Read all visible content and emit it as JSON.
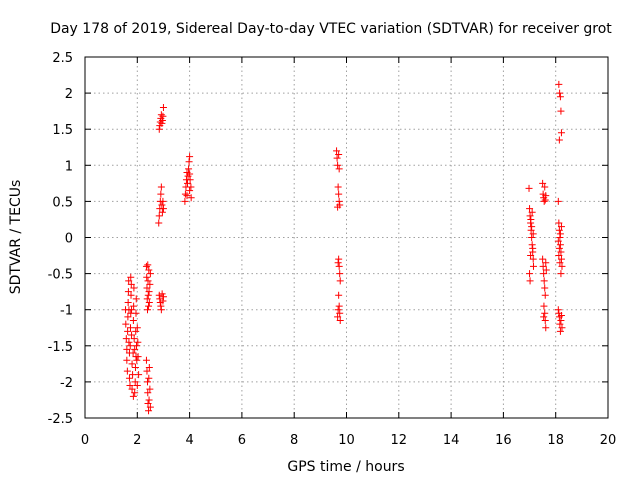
{
  "chart_data": {
    "type": "scatter",
    "title": "Day 178 of 2019, Sidereal Day-to-day VTEC variation (SDTVAR) for receiver grot",
    "xlabel": "GPS time / hours",
    "ylabel": "SDTVAR / TECUs",
    "xlim": [
      0,
      20
    ],
    "ylim": [
      -2.5,
      2.5
    ],
    "xticks": [
      0,
      2,
      4,
      6,
      8,
      10,
      12,
      14,
      16,
      18,
      20
    ],
    "yticks": [
      -2.5,
      -2,
      -1.5,
      -1,
      -0.5,
      0,
      0.5,
      1,
      1.5,
      2,
      2.5
    ],
    "xtick_labels": [
      "0",
      "2",
      "4",
      "6",
      "8",
      "10",
      "12",
      "14",
      "16",
      "18",
      "20"
    ],
    "ytick_labels": [
      "-2.5",
      "-2",
      "-1.5",
      "-1",
      "-0.5",
      "0",
      "0.5",
      "1",
      "1.5",
      "2",
      "2.5"
    ],
    "grid": true,
    "marker": "+",
    "color": "#ff0000",
    "series": [
      {
        "name": "SDTVAR",
        "points": [
          [
            1.55,
            -1.0
          ],
          [
            1.56,
            -1.2
          ],
          [
            1.58,
            -1.4
          ],
          [
            1.6,
            -1.55
          ],
          [
            1.6,
            -1.7
          ],
          [
            1.62,
            -1.85
          ],
          [
            1.63,
            -1.3
          ],
          [
            1.64,
            -1.1
          ],
          [
            1.65,
            -0.9
          ],
          [
            1.66,
            -0.75
          ],
          [
            1.67,
            -0.6
          ],
          [
            1.68,
            -1.45
          ],
          [
            1.7,
            -1.6
          ],
          [
            1.7,
            -1.95
          ],
          [
            1.72,
            -2.05
          ],
          [
            1.73,
            -1.5
          ],
          [
            1.74,
            -1.25
          ],
          [
            1.75,
            -1.05
          ],
          [
            1.76,
            -0.8
          ],
          [
            1.77,
            -0.65
          ],
          [
            1.78,
            -1.35
          ],
          [
            1.8,
            -1.75
          ],
          [
            1.8,
            -2.1
          ],
          [
            1.82,
            -1.9
          ],
          [
            1.84,
            -1.6
          ],
          [
            1.85,
            -1.15
          ],
          [
            1.86,
            -0.95
          ],
          [
            1.87,
            -0.7
          ],
          [
            1.88,
            -1.4
          ],
          [
            1.9,
            -1.55
          ],
          [
            1.9,
            -2.15
          ],
          [
            1.92,
            -2.0
          ],
          [
            1.93,
            -1.8
          ],
          [
            1.94,
            -1.3
          ],
          [
            1.95,
            -1.05
          ],
          [
            1.96,
            -0.85
          ],
          [
            1.97,
            -1.5
          ],
          [
            1.98,
            -1.7
          ],
          [
            2.0,
            -2.05
          ],
          [
            2.0,
            -1.25
          ],
          [
            2.02,
            -1.45
          ],
          [
            2.03,
            -1.65
          ],
          [
            2.05,
            -1.9
          ],
          [
            1.75,
            -0.55
          ],
          [
            1.85,
            -2.2
          ],
          [
            1.95,
            -1.65
          ],
          [
            1.68,
            -1.0
          ],
          [
            1.78,
            -1.0
          ],
          [
            2.35,
            -0.4
          ],
          [
            2.36,
            -0.55
          ],
          [
            2.37,
            -0.7
          ],
          [
            2.38,
            -0.85
          ],
          [
            2.39,
            -1.0
          ],
          [
            2.4,
            -0.38
          ],
          [
            2.41,
            -0.6
          ],
          [
            2.42,
            -0.8
          ],
          [
            2.43,
            -0.95
          ],
          [
            2.44,
            -0.45
          ],
          [
            2.45,
            -0.75
          ],
          [
            2.46,
            -0.9
          ],
          [
            2.48,
            -0.65
          ],
          [
            2.5,
            -0.5
          ],
          [
            2.35,
            -1.7
          ],
          [
            2.37,
            -1.85
          ],
          [
            2.39,
            -2.0
          ],
          [
            2.4,
            -2.15
          ],
          [
            2.41,
            -2.3
          ],
          [
            2.43,
            -2.4
          ],
          [
            2.44,
            -1.95
          ],
          [
            2.45,
            -2.25
          ],
          [
            2.46,
            -1.8
          ],
          [
            2.48,
            -2.1
          ],
          [
            2.5,
            -2.35
          ],
          [
            2.82,
            0.2
          ],
          [
            2.84,
            0.3
          ],
          [
            2.86,
            0.4
          ],
          [
            2.88,
            0.5
          ],
          [
            2.9,
            0.6
          ],
          [
            2.92,
            0.7
          ],
          [
            2.94,
            0.45
          ],
          [
            2.96,
            0.35
          ],
          [
            2.98,
            0.5
          ],
          [
            3.0,
            0.4
          ],
          [
            2.84,
            1.5
          ],
          [
            2.86,
            1.55
          ],
          [
            2.88,
            1.6
          ],
          [
            2.9,
            1.65
          ],
          [
            2.92,
            1.7
          ],
          [
            2.94,
            1.58
          ],
          [
            2.96,
            1.62
          ],
          [
            2.98,
            1.68
          ],
          [
            3.0,
            1.8
          ],
          [
            2.84,
            -0.8
          ],
          [
            2.86,
            -0.85
          ],
          [
            2.88,
            -0.9
          ],
          [
            2.9,
            -0.95
          ],
          [
            2.92,
            -1.0
          ],
          [
            2.95,
            -0.78
          ],
          [
            2.98,
            -0.88
          ],
          [
            3.0,
            -0.82
          ],
          [
            3.82,
            0.5
          ],
          [
            3.84,
            0.6
          ],
          [
            3.86,
            0.7
          ],
          [
            3.88,
            0.8
          ],
          [
            3.9,
            0.9
          ],
          [
            3.92,
            0.75
          ],
          [
            3.94,
            0.85
          ],
          [
            3.96,
            0.95
          ],
          [
            3.98,
            1.05
          ],
          [
            4.0,
            0.65
          ],
          [
            4.02,
            0.8
          ],
          [
            4.05,
            0.7
          ],
          [
            4.06,
            0.55
          ],
          [
            4.0,
            1.12
          ],
          [
            3.9,
            0.58
          ],
          [
            4.0,
            0.88
          ],
          [
            9.62,
            1.2
          ],
          [
            9.64,
            1.1
          ],
          [
            9.66,
            1.0
          ],
          [
            9.7,
            1.15
          ],
          [
            9.72,
            0.95
          ],
          [
            9.68,
            0.7
          ],
          [
            9.7,
            0.6
          ],
          [
            9.72,
            0.5
          ],
          [
            9.74,
            0.45
          ],
          [
            9.66,
            0.42
          ],
          [
            9.7,
            -0.3
          ],
          [
            9.72,
            -0.4
          ],
          [
            9.74,
            -0.5
          ],
          [
            9.76,
            -0.6
          ],
          [
            9.68,
            -0.35
          ],
          [
            9.7,
            -0.8
          ],
          [
            9.72,
            -0.95
          ],
          [
            9.74,
            -1.05
          ],
          [
            9.76,
            -1.15
          ],
          [
            9.68,
            -1.0
          ],
          [
            9.66,
            -1.1
          ],
          [
            16.98,
            0.68
          ],
          [
            17.0,
            0.4
          ],
          [
            17.02,
            0.3
          ],
          [
            17.04,
            0.2
          ],
          [
            17.06,
            0.1
          ],
          [
            17.08,
            0.0
          ],
          [
            17.1,
            -0.1
          ],
          [
            17.12,
            -0.2
          ],
          [
            17.14,
            -0.3
          ],
          [
            17.15,
            -0.4
          ],
          [
            17.0,
            -0.5
          ],
          [
            17.02,
            -0.6
          ],
          [
            17.05,
            0.25
          ],
          [
            17.08,
            0.15
          ],
          [
            17.1,
            0.35
          ],
          [
            17.12,
            -0.15
          ],
          [
            17.04,
            -0.25
          ],
          [
            17.14,
            0.05
          ],
          [
            17.5,
            0.75
          ],
          [
            17.52,
            0.6
          ],
          [
            17.54,
            0.55
          ],
          [
            17.56,
            0.5
          ],
          [
            17.58,
            0.7
          ],
          [
            17.6,
            0.52
          ],
          [
            17.62,
            0.58
          ],
          [
            17.5,
            -0.3
          ],
          [
            17.52,
            -0.4
          ],
          [
            17.54,
            -0.5
          ],
          [
            17.56,
            -0.6
          ],
          [
            17.58,
            -0.7
          ],
          [
            17.6,
            -0.8
          ],
          [
            17.62,
            -0.35
          ],
          [
            17.64,
            -0.45
          ],
          [
            17.55,
            -0.95
          ],
          [
            17.58,
            -1.05
          ],
          [
            17.6,
            -1.15
          ],
          [
            17.62,
            -1.25
          ],
          [
            17.54,
            -1.1
          ],
          [
            18.12,
            2.12
          ],
          [
            18.15,
            2.0
          ],
          [
            18.18,
            1.95
          ],
          [
            18.2,
            1.75
          ],
          [
            18.22,
            1.45
          ],
          [
            18.14,
            1.35
          ],
          [
            18.1,
            0.5
          ],
          [
            18.12,
            0.2
          ],
          [
            18.14,
            0.1
          ],
          [
            18.16,
            0.0
          ],
          [
            18.18,
            -0.1
          ],
          [
            18.2,
            -0.2
          ],
          [
            18.22,
            -0.3
          ],
          [
            18.24,
            -0.4
          ],
          [
            18.1,
            -0.05
          ],
          [
            18.12,
            -0.25
          ],
          [
            18.14,
            -0.15
          ],
          [
            18.16,
            -0.35
          ],
          [
            18.18,
            0.05
          ],
          [
            18.2,
            -0.5
          ],
          [
            18.22,
            0.15
          ],
          [
            18.1,
            -1.0
          ],
          [
            18.12,
            -1.05
          ],
          [
            18.14,
            -1.1
          ],
          [
            18.16,
            -1.2
          ],
          [
            18.18,
            -1.3
          ],
          [
            18.2,
            -1.15
          ],
          [
            18.22,
            -1.08
          ],
          [
            18.24,
            -1.25
          ]
        ]
      }
    ]
  }
}
